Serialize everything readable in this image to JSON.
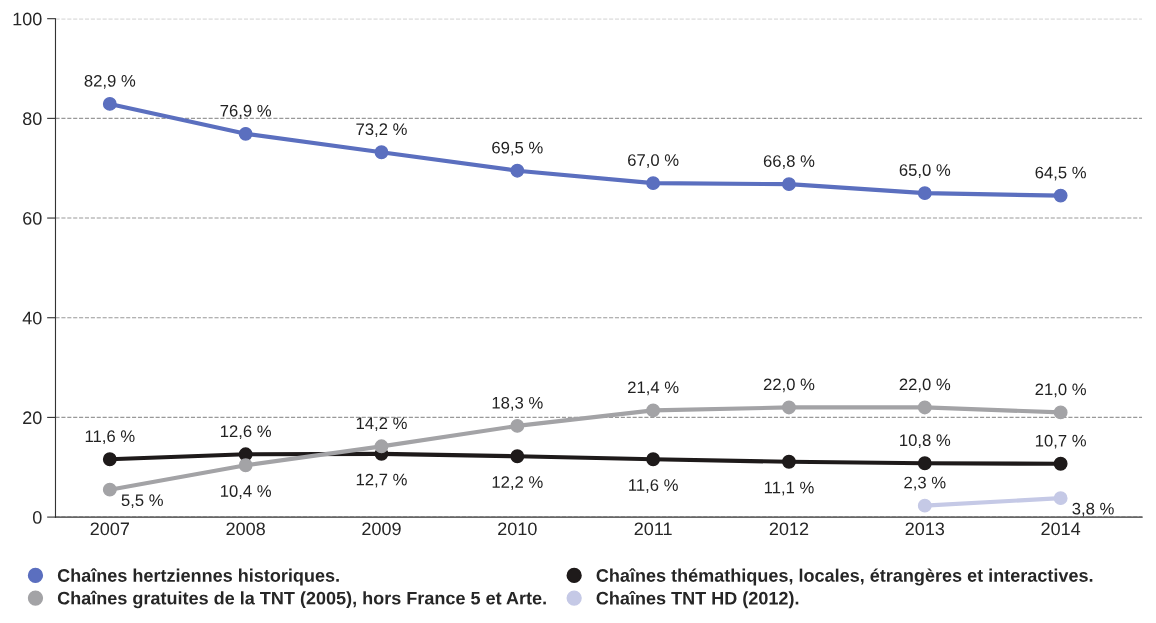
{
  "chart_data": {
    "type": "line",
    "categories": [
      "2007",
      "2008",
      "2009",
      "2010",
      "2011",
      "2012",
      "2013",
      "2014"
    ],
    "series": [
      {
        "name": "Chaînes hertziennes historiques.",
        "color": "#5b6fbf",
        "values": [
          82.9,
          76.9,
          73.2,
          69.5,
          67.0,
          66.8,
          65.0,
          64.5
        ],
        "value_labels": [
          "82,9 %",
          "76,9 %",
          "73,2 %",
          "69,5 %",
          "67,0 %",
          "66,8 %",
          "65,0 %",
          "64,5 %"
        ]
      },
      {
        "name": "Chaînes thémathiques, locales, étrangères et interactives.",
        "color": "#1e1a1a",
        "values": [
          11.6,
          12.6,
          12.7,
          12.2,
          11.6,
          11.1,
          10.8,
          10.7
        ],
        "value_labels": [
          "11,6 %",
          "12,6 %",
          "12,7 %",
          "12,2 %",
          "11,6 %",
          "11,1 %",
          "10,8 %",
          "10,7 %"
        ]
      },
      {
        "name": "Chaînes gratuites de la TNT (2005), hors France 5 et Arte.",
        "color": "#a3a3a6",
        "values": [
          5.5,
          10.4,
          14.2,
          18.3,
          21.4,
          22.0,
          22.0,
          21.0
        ],
        "value_labels": [
          "5,5 %",
          "10,4 %",
          "14,2 %",
          "18,3 %",
          "21,4 %",
          "22,0 %",
          "22,0 %",
          "21,0 %"
        ]
      },
      {
        "name": "Chaînes TNT HD (2012).",
        "color": "#c5c9e6",
        "values": [
          null,
          null,
          null,
          null,
          null,
          null,
          2.3,
          3.8
        ],
        "value_labels": [
          null,
          null,
          null,
          null,
          null,
          null,
          "2,3 %",
          "3,8 %"
        ]
      }
    ],
    "ylim": [
      0,
      100
    ],
    "yticks": [
      0,
      20,
      40,
      60,
      80,
      100
    ],
    "grid": "y",
    "legend": "bottom",
    "marker": "circle",
    "line_style": "solid"
  }
}
